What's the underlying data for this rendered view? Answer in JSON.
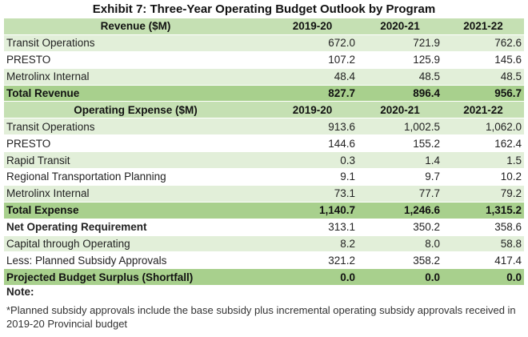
{
  "title": "Exhibit 7: Three-Year Operating Budget Outlook by Program",
  "revenue_header": {
    "label": "Revenue ($M)",
    "y1": "2019-20",
    "y2": "2020-21",
    "y3": "2021-22"
  },
  "revenue_rows": [
    {
      "label": "Transit Operations",
      "y1": "672.0",
      "y2": "721.9",
      "y3": "762.6"
    },
    {
      "label": "PRESTO",
      "y1": "107.2",
      "y2": "125.9",
      "y3": "145.6"
    },
    {
      "label": "Metrolinx Internal",
      "y1": "48.4",
      "y2": "48.5",
      "y3": "48.5"
    }
  ],
  "total_revenue": {
    "label": "Total Revenue",
    "y1": "827.7",
    "y2": "896.4",
    "y3": "956.7"
  },
  "expense_header": {
    "label": "Operating Expense ($M)",
    "y1": "2019-20",
    "y2": "2020-21",
    "y3": "2021-22"
  },
  "expense_rows": [
    {
      "label": "Transit Operations",
      "y1": "913.6",
      "y2": "1,002.5",
      "y3": "1,062.0"
    },
    {
      "label": "PRESTO",
      "y1": "144.6",
      "y2": "155.2",
      "y3": "162.4"
    },
    {
      "label": "Rapid Transit",
      "y1": "0.3",
      "y2": "1.4",
      "y3": "1.5"
    },
    {
      "label": "Regional Transportation Planning",
      "y1": "9.1",
      "y2": "9.7",
      "y3": "10.2"
    },
    {
      "label": "Metrolinx Internal",
      "y1": "73.1",
      "y2": "77.7",
      "y3": "79.2"
    }
  ],
  "total_expense": {
    "label": "Total Expense",
    "y1": "1,140.7",
    "y2": "1,246.6",
    "y3": "1,315.2"
  },
  "net_requirement": {
    "label": "Net Operating Requirement",
    "y1": "313.1",
    "y2": "350.2",
    "y3": "358.6"
  },
  "capital_operating": {
    "label": "Capital through Operating",
    "y1": "8.2",
    "y2": "8.0",
    "y3": "58.8"
  },
  "planned_subsidy": {
    "label": "Less: Planned Subsidy Approvals",
    "y1": "321.2",
    "y2": "358.2",
    "y3": "417.4"
  },
  "surplus": {
    "label": "Projected Budget Surplus (Shortfall)",
    "y1": "0.0",
    "y2": "0.0",
    "y3": "0.0"
  },
  "note": {
    "title": "Note:",
    "text": "*Planned subsidy approvals include the base subsidy plus incremental operating subsidy approvals received in 2019-20 Provincial budget"
  },
  "colors": {
    "header": "#c5e0b3",
    "total": "#a8d08d",
    "shade": "#e2efd9"
  }
}
